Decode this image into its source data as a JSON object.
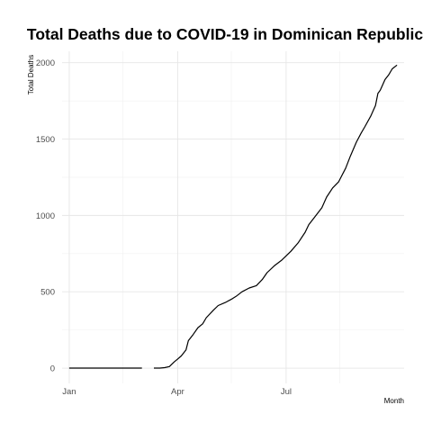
{
  "chart_data": {
    "type": "line",
    "title": "Total Deaths due to COVID-19 in Dominican Republic",
    "xlabel": "Month",
    "ylabel": "Total Deaths",
    "x_ticks": [
      "Jan",
      "Apr",
      "Jul"
    ],
    "y_ticks": [
      0,
      500,
      1000,
      1500,
      2000
    ],
    "xlim": [
      "2019-12-26",
      "2020-10-08"
    ],
    "ylim": [
      -100,
      2075
    ],
    "grid": true,
    "legend": "none",
    "line_color": "#000000",
    "series": [
      {
        "segments": [
          {
            "x": [
              "2020-01-01",
              "2020-01-15",
              "2020-02-01",
              "2020-02-15",
              "2020-03-02"
            ],
            "y": [
              0,
              0,
              0,
              0,
              0
            ]
          },
          {
            "x": [
              "2020-03-12",
              "2020-03-17",
              "2020-03-21",
              "2020-03-25",
              "2020-03-29",
              "2020-04-01",
              "2020-04-04",
              "2020-04-08",
              "2020-04-10",
              "2020-04-14",
              "2020-04-18",
              "2020-04-22",
              "2020-04-25",
              "2020-05-01",
              "2020-05-05",
              "2020-05-11",
              "2020-05-17",
              "2020-05-20",
              "2020-05-25",
              "2020-05-31",
              "2020-06-06",
              "2020-06-11",
              "2020-06-15",
              "2020-06-21",
              "2020-06-27",
              "2020-07-01",
              "2020-07-05",
              "2020-07-11",
              "2020-07-17",
              "2020-07-20",
              "2020-07-25",
              "2020-07-31",
              "2020-08-04",
              "2020-08-09",
              "2020-08-14",
              "2020-08-20",
              "2020-08-24",
              "2020-08-29",
              "2020-09-02",
              "2020-09-05",
              "2020-09-10",
              "2020-09-14",
              "2020-09-16",
              "2020-09-18",
              "2020-09-22",
              "2020-09-25",
              "2020-09-28",
              "2020-10-02"
            ],
            "y": [
              0,
              0,
              3,
              10,
              40,
              60,
              80,
              120,
              180,
              220,
              265,
              290,
              330,
              380,
              410,
              430,
              455,
              470,
              500,
              525,
              540,
              580,
              625,
              670,
              705,
              735,
              765,
              820,
              890,
              940,
              990,
              1050,
              1120,
              1180,
              1220,
              1310,
              1390,
              1480,
              1540,
              1580,
              1650,
              1720,
              1800,
              1820,
              1890,
              1920,
              1960,
              1985
            ]
          }
        ]
      }
    ]
  }
}
